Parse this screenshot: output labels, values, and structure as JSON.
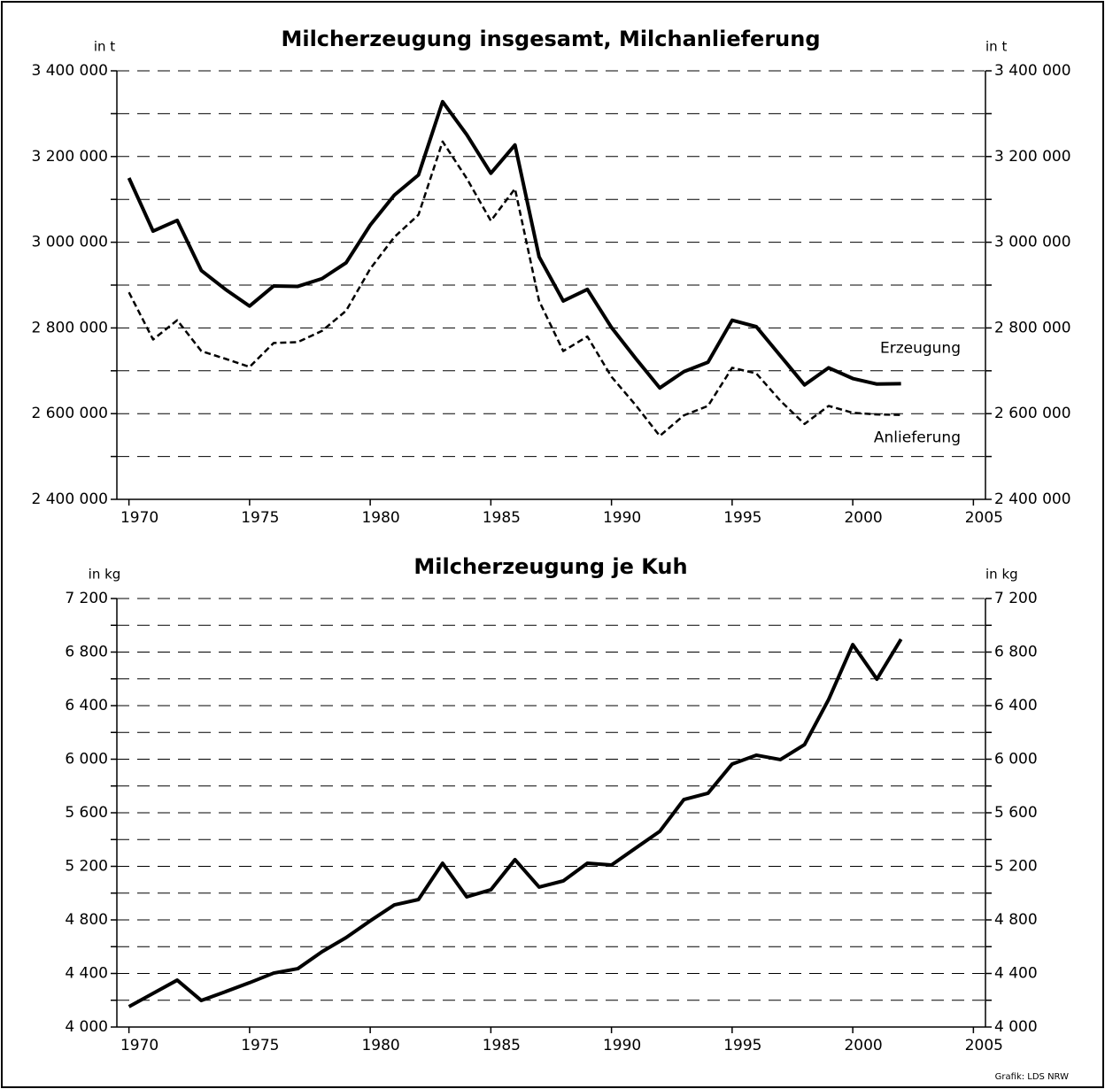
{
  "source": "Grafik: LDS NRW",
  "chart_data": [
    {
      "type": "line",
      "title": "Milcherzeugung insgesamt, Milchanlieferung",
      "ylabel": "in t",
      "y2label": "in t",
      "x": [
        1970,
        1971,
        1972,
        1973,
        1974,
        1975,
        1976,
        1977,
        1978,
        1979,
        1980,
        1981,
        1982,
        1983,
        1984,
        1985,
        1986,
        1987,
        1988,
        1989,
        1990,
        1991,
        1992,
        1993,
        1994,
        1995,
        1996,
        1997,
        1998,
        1999,
        2000,
        2001,
        2002
      ],
      "series": [
        {
          "name": "Erzeugung",
          "color": "#000000",
          "dash": false,
          "values": [
            3150000,
            3026000,
            3051000,
            2934000,
            2890000,
            2851000,
            2898000,
            2897000,
            2915000,
            2952000,
            3040000,
            3110000,
            3157000,
            3328000,
            3251000,
            3161000,
            3227000,
            2966000,
            2863000,
            2890000,
            2801000,
            2729000,
            2660000,
            2698000,
            2720000,
            2818000,
            2803000,
            2735000,
            2667000,
            2707000,
            2682000,
            2669000,
            2670000
          ]
        },
        {
          "name": "Anlieferung",
          "color": "#000000",
          "dash": true,
          "values": [
            2883000,
            2773000,
            2818000,
            2746000,
            2728000,
            2709000,
            2765000,
            2767000,
            2793000,
            2840000,
            2938000,
            3012000,
            3064000,
            3235000,
            3149000,
            3050000,
            3125000,
            2863000,
            2746000,
            2780000,
            2686000,
            2620000,
            2548000,
            2596000,
            2618000,
            2707000,
            2694000,
            2630000,
            2576000,
            2618000,
            2602000,
            2598000,
            2597000
          ]
        }
      ],
      "xlim": [
        1969.5,
        2005.5
      ],
      "xticks": [
        1970,
        1975,
        1980,
        1985,
        1990,
        1995,
        2000,
        2005
      ],
      "ylim": [
        2400000,
        3400000
      ],
      "yticks": [
        {
          "value": 2400000,
          "label": "2 400 000"
        },
        {
          "value": 2600000,
          "label": "2 600 000"
        },
        {
          "value": 2800000,
          "label": "2 800 000"
        },
        {
          "value": 3000000,
          "label": "3 000 000"
        },
        {
          "value": 3200000,
          "label": "3 200 000"
        },
        {
          "value": 3400000,
          "label": "3 400 000"
        }
      ],
      "minor_yticks": [
        2500000,
        2700000,
        2900000,
        3100000,
        3300000
      ],
      "grid": true
    },
    {
      "type": "line",
      "title": "Milcherzeugung je Kuh",
      "ylabel": "in kg",
      "y2label": "in kg",
      "x": [
        1970,
        1971,
        1972,
        1973,
        1974,
        1975,
        1976,
        1977,
        1978,
        1979,
        1980,
        1981,
        1982,
        1983,
        1984,
        1985,
        1986,
        1987,
        1988,
        1989,
        1990,
        1991,
        1992,
        1993,
        1994,
        1995,
        1996,
        1997,
        1998,
        1999,
        2000,
        2001,
        2002
      ],
      "series": [
        {
          "color": "#000000",
          "dash": false,
          "values": [
            4152,
            4251,
            4350,
            4198,
            4264,
            4331,
            4403,
            4436,
            4562,
            4668,
            4793,
            4912,
            4952,
            5223,
            4972,
            5025,
            5250,
            5045,
            5091,
            5223,
            5210,
            5336,
            5461,
            5699,
            5746,
            5964,
            6030,
            5997,
            6109,
            6446,
            6856,
            6598,
            6896
          ]
        }
      ],
      "xlim": [
        1969.5,
        2005.5
      ],
      "xticks": [
        1970,
        1975,
        1980,
        1985,
        1990,
        1995,
        2000,
        2005
      ],
      "ylim": [
        4000,
        7200
      ],
      "yticks": [
        {
          "value": 4000,
          "label": "4 000"
        },
        {
          "value": 4400,
          "label": "4 400"
        },
        {
          "value": 4800,
          "label": "4 800"
        },
        {
          "value": 5200,
          "label": "5 200"
        },
        {
          "value": 5600,
          "label": "5 600"
        },
        {
          "value": 6000,
          "label": "6 000"
        },
        {
          "value": 6400,
          "label": "6 400"
        },
        {
          "value": 6800,
          "label": "6 800"
        },
        {
          "value": 7200,
          "label": "7 200"
        }
      ],
      "minor_yticks": [
        4200,
        4600,
        5000,
        5400,
        5800,
        6200,
        6600,
        7000
      ],
      "grid": true
    }
  ]
}
